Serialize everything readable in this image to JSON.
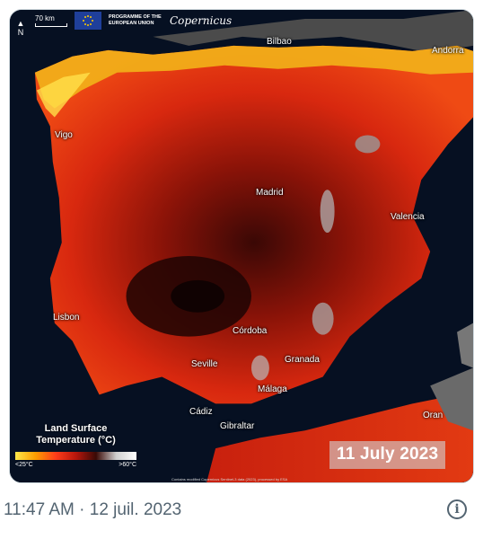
{
  "map": {
    "scale_label": "70 km",
    "north_label": "N",
    "eu_program": "PROGRAMME OF THE EUROPEAN UNION",
    "brand": "Copernicus",
    "cities": {
      "bilbao": "Bilbao",
      "andorra": "Andorra",
      "vigo": "Vigo",
      "madrid": "Madrid",
      "valencia": "Valencia",
      "lisbon": "Lisbon",
      "cordoba": "Córdoba",
      "granada": "Granada",
      "seville": "Seville",
      "malaga": "Málaga",
      "cadiz": "Cádiz",
      "gibraltar": "Gibraltar",
      "oran": "Oran"
    },
    "legend_title": "Land Surface Temperature (°C)",
    "legend_min": "<25°C",
    "legend_max": ">60°C",
    "date_label": "11 July 2023",
    "fine_print": "Contains modified Copernicus Sentinel-3 data (2023), processed by ESA"
  },
  "tweet": {
    "timestamp": "11:47 AM · 12 juil. 2023"
  },
  "colors": {
    "sea": "#061022",
    "hot": "#d8250f",
    "hotter": "#7a0f06",
    "coast": "#ffd23a",
    "timestamp": "#536471"
  }
}
